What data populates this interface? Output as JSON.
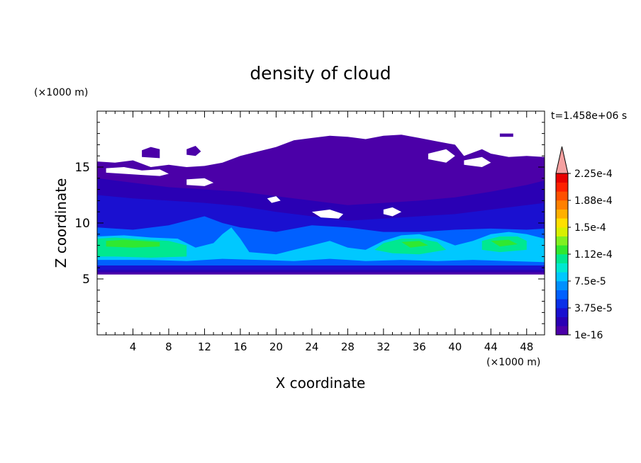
{
  "chart_data": {
    "type": "heatmap",
    "title": "density of cloud",
    "xlabel": "X coordinate",
    "ylabel": "Z coordinate",
    "x_unit": "(×1000 m)",
    "y_unit": "(×1000 m)",
    "time_label": "t=1.458e+06 s",
    "xlim": [
      0,
      50
    ],
    "ylim": [
      0,
      20
    ],
    "x_ticks": [
      4,
      8,
      12,
      16,
      20,
      24,
      28,
      32,
      36,
      40,
      44,
      48
    ],
    "y_ticks": [
      5,
      10,
      15
    ],
    "colorbar": {
      "labels": [
        "1e-16",
        "3.75e-5",
        "7.5e-5",
        "1.12e-4",
        "1.5e-4",
        "1.88e-4",
        "2.25e-4"
      ],
      "colors": [
        "#4b00a8",
        "#2a00b4",
        "#1a10d0",
        "#0a30e8",
        "#0060ff",
        "#0090ff",
        "#00c8ff",
        "#00e8d0",
        "#00e890",
        "#30e830",
        "#80f020",
        "#d8f000",
        "#ffe000",
        "#ffb000",
        "#ff8000",
        "#ff5000",
        "#ff2000",
        "#e80000"
      ],
      "extend_color": "#f4a0a0"
    },
    "regions": [
      {
        "level": 0,
        "poly": [
          [
            0,
            15.5
          ],
          [
            2,
            15.4
          ],
          [
            4,
            15.6
          ],
          [
            6,
            15.0
          ],
          [
            8,
            15.2
          ],
          [
            10,
            15.0
          ],
          [
            12,
            15.1
          ],
          [
            14,
            15.4
          ],
          [
            16,
            16.0
          ],
          [
            18,
            16.4
          ],
          [
            20,
            16.8
          ],
          [
            22,
            17.4
          ],
          [
            24,
            17.6
          ],
          [
            26,
            17.8
          ],
          [
            28,
            17.7
          ],
          [
            30,
            17.5
          ],
          [
            32,
            17.8
          ],
          [
            34,
            17.9
          ],
          [
            36,
            17.6
          ],
          [
            38,
            17.3
          ],
          [
            40,
            17.0
          ],
          [
            41,
            16.0
          ],
          [
            43,
            16.6
          ],
          [
            44,
            16.2
          ],
          [
            46,
            15.9
          ],
          [
            48,
            16.0
          ],
          [
            50,
            15.9
          ],
          [
            50,
            5.4
          ],
          [
            0,
            5.4
          ]
        ]
      },
      {
        "level": 1,
        "poly": [
          [
            0,
            14.0
          ],
          [
            4,
            13.6
          ],
          [
            8,
            13.2
          ],
          [
            12,
            13.0
          ],
          [
            16,
            12.8
          ],
          [
            20,
            12.4
          ],
          [
            24,
            12.0
          ],
          [
            28,
            11.6
          ],
          [
            32,
            11.8
          ],
          [
            36,
            12.0
          ],
          [
            40,
            12.3
          ],
          [
            44,
            12.8
          ],
          [
            48,
            13.4
          ],
          [
            50,
            13.8
          ],
          [
            50,
            5.6
          ],
          [
            0,
            5.6
          ]
        ]
      },
      {
        "level": 2,
        "poly": [
          [
            0,
            12.5
          ],
          [
            4,
            12.2
          ],
          [
            8,
            12.0
          ],
          [
            12,
            11.8
          ],
          [
            16,
            11.5
          ],
          [
            20,
            11.0
          ],
          [
            24,
            10.6
          ],
          [
            28,
            10.2
          ],
          [
            32,
            10.4
          ],
          [
            36,
            10.6
          ],
          [
            40,
            10.8
          ],
          [
            44,
            11.2
          ],
          [
            48,
            11.6
          ],
          [
            50,
            11.8
          ],
          [
            50,
            5.8
          ],
          [
            0,
            5.8
          ]
        ]
      },
      {
        "level": 4,
        "poly": [
          [
            0,
            9.6
          ],
          [
            4,
            9.4
          ],
          [
            8,
            9.8
          ],
          [
            12,
            10.6
          ],
          [
            14,
            10.0
          ],
          [
            16,
            9.6
          ],
          [
            20,
            9.2
          ],
          [
            24,
            9.8
          ],
          [
            28,
            9.6
          ],
          [
            32,
            9.2
          ],
          [
            36,
            9.2
          ],
          [
            40,
            9.4
          ],
          [
            44,
            9.5
          ],
          [
            48,
            9.4
          ],
          [
            50,
            9.5
          ],
          [
            50,
            6.2
          ],
          [
            0,
            6.2
          ]
        ]
      },
      {
        "level": 6,
        "poly": [
          [
            0,
            8.8
          ],
          [
            3,
            8.9
          ],
          [
            6,
            8.7
          ],
          [
            9,
            8.6
          ],
          [
            11,
            7.8
          ],
          [
            13,
            8.2
          ],
          [
            14,
            9.0
          ],
          [
            15,
            9.6
          ],
          [
            16,
            8.6
          ],
          [
            17,
            7.4
          ],
          [
            20,
            7.2
          ],
          [
            22,
            7.6
          ],
          [
            24,
            8.0
          ],
          [
            26,
            8.4
          ],
          [
            28,
            7.8
          ],
          [
            30,
            7.6
          ],
          [
            32,
            8.4
          ],
          [
            34,
            8.9
          ],
          [
            36,
            9.0
          ],
          [
            38,
            8.6
          ],
          [
            40,
            8.0
          ],
          [
            42,
            8.4
          ],
          [
            44,
            9.0
          ],
          [
            46,
            9.2
          ],
          [
            48,
            9.0
          ],
          [
            50,
            8.6
          ],
          [
            50,
            6.5
          ],
          [
            46,
            6.6
          ],
          [
            42,
            6.7
          ],
          [
            38,
            6.6
          ],
          [
            34,
            6.7
          ],
          [
            30,
            6.6
          ],
          [
            26,
            6.8
          ],
          [
            22,
            6.6
          ],
          [
            18,
            6.7
          ],
          [
            14,
            6.8
          ],
          [
            10,
            6.6
          ],
          [
            6,
            6.7
          ],
          [
            0,
            6.7
          ]
        ]
      },
      {
        "level": 8,
        "poly": [
          [
            0,
            8.6
          ],
          [
            2,
            8.7
          ],
          [
            4,
            8.6
          ],
          [
            6,
            8.5
          ],
          [
            8,
            8.4
          ],
          [
            10,
            8.0
          ],
          [
            10,
            7.0
          ],
          [
            6,
            6.9
          ],
          [
            2,
            7.0
          ],
          [
            0,
            7.0
          ]
        ]
      },
      {
        "level": 8,
        "poly": [
          [
            32,
            8.2
          ],
          [
            34,
            8.6
          ],
          [
            36,
            8.6
          ],
          [
            38,
            8.3
          ],
          [
            39,
            7.6
          ],
          [
            36,
            7.2
          ],
          [
            33,
            7.3
          ],
          [
            31,
            7.6
          ]
        ]
      },
      {
        "level": 8,
        "poly": [
          [
            43,
            8.4
          ],
          [
            45,
            8.8
          ],
          [
            47,
            8.8
          ],
          [
            48,
            8.4
          ],
          [
            48,
            7.6
          ],
          [
            45,
            7.4
          ],
          [
            43,
            7.6
          ]
        ]
      },
      {
        "level": 9,
        "poly": [
          [
            1,
            8.4
          ],
          [
            3,
            8.5
          ],
          [
            5,
            8.4
          ],
          [
            7,
            8.3
          ],
          [
            7,
            7.9
          ],
          [
            4,
            7.8
          ],
          [
            1,
            7.9
          ]
        ]
      },
      {
        "level": 9,
        "poly": [
          [
            34,
            8.3
          ],
          [
            36,
            8.4
          ],
          [
            37,
            8.0
          ],
          [
            35,
            7.8
          ]
        ]
      },
      {
        "level": 9,
        "poly": [
          [
            44,
            8.4
          ],
          [
            46,
            8.5
          ],
          [
            47,
            8.1
          ],
          [
            45,
            7.9
          ]
        ]
      },
      {
        "level": 0,
        "poly": [
          [
            5,
            16.5
          ],
          [
            6,
            16.8
          ],
          [
            7,
            16.6
          ],
          [
            7,
            15.8
          ],
          [
            5,
            15.9
          ]
        ]
      },
      {
        "level": 0,
        "poly": [
          [
            10,
            16.6
          ],
          [
            11,
            16.9
          ],
          [
            11.6,
            16.4
          ],
          [
            11,
            16.0
          ],
          [
            10,
            16.1
          ]
        ]
      },
      {
        "level": 0,
        "poly": [
          [
            45,
            18.0
          ],
          [
            46.5,
            18.0
          ],
          [
            46.5,
            17.7
          ],
          [
            45,
            17.7
          ]
        ]
      }
    ],
    "holes": [
      [
        [
          1,
          14.9
        ],
        [
          3,
          15.0
        ],
        [
          5,
          14.7
        ],
        [
          7,
          14.8
        ],
        [
          8,
          14.4
        ],
        [
          7,
          14.2
        ],
        [
          5,
          14.3
        ],
        [
          3,
          14.4
        ],
        [
          1,
          14.5
        ]
      ],
      [
        [
          10,
          13.9
        ],
        [
          12,
          14.0
        ],
        [
          13,
          13.6
        ],
        [
          12,
          13.3
        ],
        [
          10,
          13.4
        ]
      ],
      [
        [
          24,
          11.0
        ],
        [
          26,
          11.2
        ],
        [
          27.5,
          10.8
        ],
        [
          27,
          10.4
        ],
        [
          25,
          10.5
        ]
      ],
      [
        [
          32,
          11.2
        ],
        [
          33,
          11.4
        ],
        [
          34,
          11.0
        ],
        [
          33,
          10.6
        ],
        [
          32,
          10.8
        ]
      ],
      [
        [
          37,
          16.2
        ],
        [
          39,
          16.6
        ],
        [
          40,
          16.0
        ],
        [
          39,
          15.4
        ],
        [
          37,
          15.7
        ]
      ],
      [
        [
          41,
          15.6
        ],
        [
          43,
          15.9
        ],
        [
          44,
          15.4
        ],
        [
          43,
          15.0
        ],
        [
          41,
          15.2
        ]
      ],
      [
        [
          19,
          12.2
        ],
        [
          20,
          12.4
        ],
        [
          20.5,
          12.0
        ],
        [
          19.5,
          11.8
        ]
      ]
    ]
  }
}
